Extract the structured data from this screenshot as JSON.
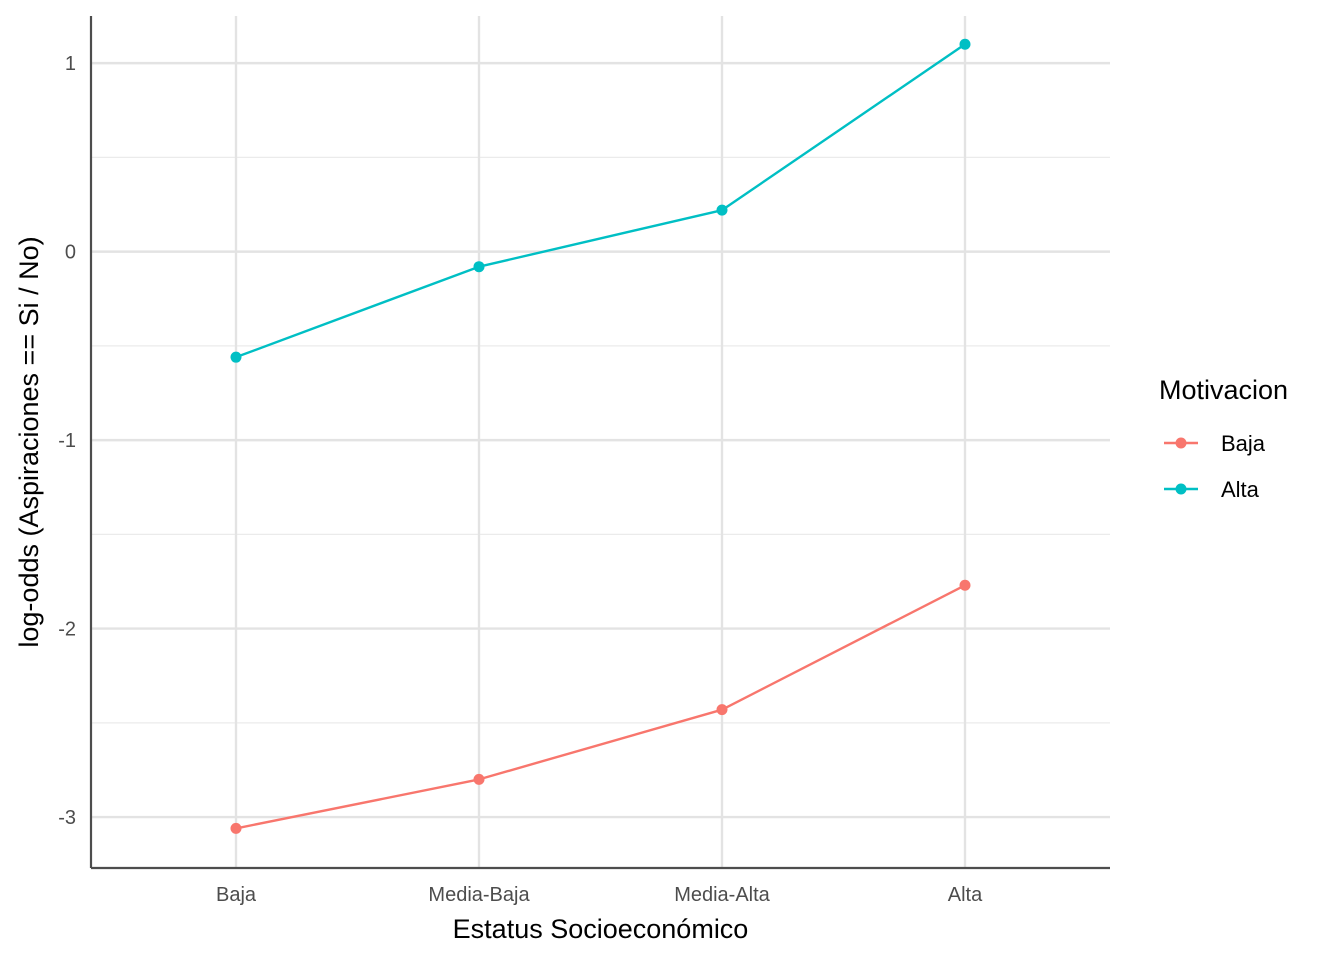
{
  "chart_data": {
    "type": "line",
    "title": "",
    "xlabel": "Estatus Socioeconómico",
    "ylabel": "log-odds (Aspiraciones == Si / No)",
    "categories": [
      "Baja",
      "Media-Baja",
      "Media-Alta",
      "Alta"
    ],
    "ylim": [
      -3.27,
      1.25
    ],
    "y_ticks": [
      1,
      0,
      -1,
      -2,
      -3
    ],
    "grid": true,
    "legend": {
      "title": "Motivacion",
      "placement": "right"
    },
    "series": [
      {
        "name": "Baja",
        "color": "#F8766D",
        "values": [
          -3.06,
          -2.8,
          -2.43,
          -1.77
        ]
      },
      {
        "name": "Alta",
        "color": "#00BFC4",
        "values": [
          -0.56,
          -0.08,
          0.22,
          1.1
        ]
      }
    ]
  }
}
